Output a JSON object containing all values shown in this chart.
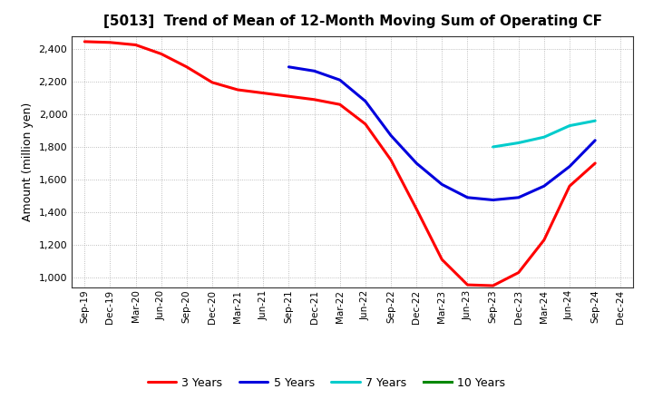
{
  "title": "[5013]  Trend of Mean of 12-Month Moving Sum of Operating CF",
  "ylabel": "Amount (million yen)",
  "background_color": "#ffffff",
  "grid_color": "#999999",
  "x_labels": [
    "Sep-19",
    "Dec-19",
    "Mar-20",
    "Jun-20",
    "Sep-20",
    "Dec-20",
    "Mar-21",
    "Jun-21",
    "Sep-21",
    "Dec-21",
    "Mar-22",
    "Jun-22",
    "Sep-22",
    "Dec-22",
    "Mar-23",
    "Jun-23",
    "Sep-23",
    "Dec-23",
    "Mar-24",
    "Jun-24",
    "Sep-24",
    "Dec-24"
  ],
  "series": [
    {
      "label": "3 Years",
      "color": "#ff0000",
      "x_indices": [
        0,
        1,
        2,
        3,
        4,
        5,
        6,
        7,
        8,
        9,
        10,
        11,
        12,
        13,
        14,
        15,
        16,
        17,
        18,
        19,
        20
      ],
      "values": [
        2445,
        2440,
        2425,
        2370,
        2290,
        2195,
        2150,
        2130,
        2110,
        2090,
        2060,
        1940,
        1720,
        1420,
        1110,
        955,
        950,
        1030,
        1230,
        1560,
        1700
      ]
    },
    {
      "label": "5 Years",
      "color": "#0000dd",
      "x_indices": [
        8,
        9,
        10,
        11,
        12,
        13,
        14,
        15,
        16,
        17,
        18,
        19,
        20
      ],
      "values": [
        2290,
        2265,
        2210,
        2080,
        1870,
        1700,
        1570,
        1490,
        1475,
        1490,
        1560,
        1680,
        1840
      ]
    },
    {
      "label": "7 Years",
      "color": "#00cccc",
      "x_indices": [
        16,
        17,
        18,
        19,
        20
      ],
      "values": [
        1800,
        1825,
        1860,
        1930,
        1960
      ]
    },
    {
      "label": "10 Years",
      "color": "#008800",
      "x_indices": [],
      "values": []
    }
  ],
  "ylim_min": 940,
  "ylim_max": 2480,
  "yticks": [
    1000,
    1200,
    1400,
    1600,
    1800,
    2000,
    2200,
    2400
  ],
  "linewidth": 2.2
}
